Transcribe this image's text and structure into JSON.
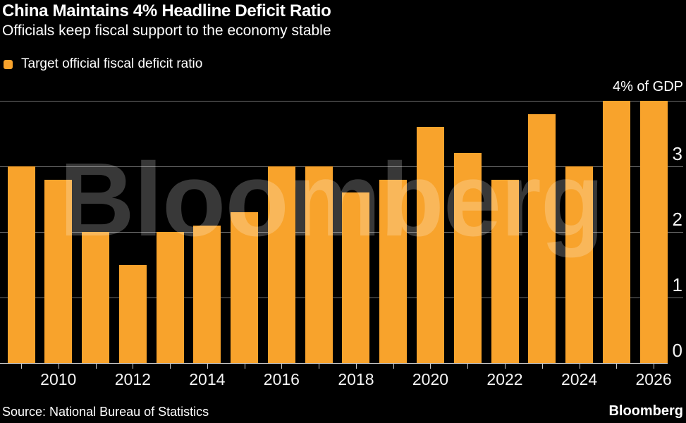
{
  "header": {
    "title": "China Maintains 4% Headline Deficit Ratio",
    "subtitle": "Officials keep fiscal support to the economy stable",
    "legend": {
      "label": "Target official fiscal deficit ratio",
      "swatch_color": "#F8A32C"
    }
  },
  "chart_data": {
    "type": "bar",
    "title": "China Maintains 4% Headline Deficit Ratio",
    "subtitle": "Officials keep fiscal support to the economy stable",
    "legend": [
      "Target official fiscal deficit ratio"
    ],
    "categories": [
      2009,
      2010,
      2011,
      2012,
      2013,
      2014,
      2015,
      2016,
      2017,
      2018,
      2019,
      2020,
      2021,
      2022,
      2023,
      2024,
      2025,
      2026
    ],
    "values": [
      3.0,
      2.8,
      2.0,
      1.5,
      2.0,
      2.1,
      2.3,
      3.0,
      3.0,
      2.6,
      2.8,
      3.6,
      3.2,
      2.8,
      3.8,
      3.0,
      4.0,
      4.0
    ],
    "ylabel": "",
    "xlabel": "",
    "top_axis_label": "4% of GDP",
    "yticks": [
      0,
      1,
      2,
      3
    ],
    "ymax_gridline": 4,
    "ylim": [
      0,
      4
    ],
    "xtick_labels": [
      "2010",
      "2012",
      "2014",
      "2016",
      "2018",
      "2020",
      "2022",
      "2024",
      "2026"
    ],
    "grid": true,
    "legend_position": "top-left",
    "axis_side": "right",
    "bar_color": "#F8A32C",
    "background_color": "#000000",
    "watermark": "Bloomberg"
  },
  "footer": {
    "source": "Source: National Bureau of Statistics",
    "brand": "Bloomberg"
  }
}
